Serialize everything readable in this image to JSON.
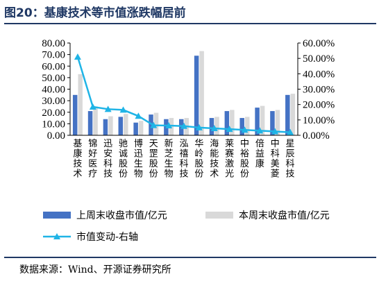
{
  "header": {
    "title": "图20：基康技术等市值涨跌幅居前"
  },
  "footer": {
    "source": "数据来源：Wind、开源证券研究所"
  },
  "colors": {
    "current_week": "#4472c4",
    "last_week": "#d9d9d9",
    "change_line": "#1fb4e6",
    "title": "#1f3864"
  },
  "chart_data": {
    "type": "bar",
    "categories": [
      "基康技术",
      "锦好医疗",
      "迅安科技",
      "驰诚股份",
      "博迅生物",
      "天罡股份",
      "新芝生物",
      "泓禧科技",
      "华岭股份",
      "海能技术",
      "莱赛激光",
      "中裕股份",
      "倍益康",
      "中科美菱",
      "星辰科技"
    ],
    "series": [
      {
        "name": "上周末收盘市值/亿元",
        "axis": "left",
        "values": [
          35.0,
          21.0,
          14.0,
          16.0,
          11.0,
          18.0,
          14.0,
          14.0,
          69.0,
          15.0,
          21.0,
          15.0,
          24.0,
          21.0,
          35.0
        ]
      },
      {
        "name": "本周末收盘市值/亿元",
        "axis": "left",
        "values": [
          53.0,
          25.0,
          16.5,
          18.5,
          12.5,
          19.5,
          15.0,
          15.0,
          73.0,
          16.0,
          22.0,
          16.0,
          25.5,
          22.0,
          36.0
        ]
      },
      {
        "name": "市值变动-右轴",
        "axis": "right",
        "type": "line",
        "values": [
          51.0,
          18.5,
          17.0,
          16.5,
          12.5,
          6.5,
          6.3,
          6.0,
          5.0,
          4.5,
          4.0,
          3.5,
          3.0,
          2.5,
          2.0
        ]
      }
    ],
    "ylim": [
      0,
      80
    ],
    "y_ticks": [
      "0.00",
      "10.00",
      "20.00",
      "30.00",
      "40.00",
      "50.00",
      "60.00",
      "70.00",
      "80.00"
    ],
    "y2lim": [
      0,
      60
    ],
    "y2_ticks": [
      "0.00%",
      "10.00%",
      "20.00%",
      "30.00%",
      "40.00%",
      "50.00%",
      "60.00%"
    ],
    "legend": "bottom",
    "grid": false
  }
}
